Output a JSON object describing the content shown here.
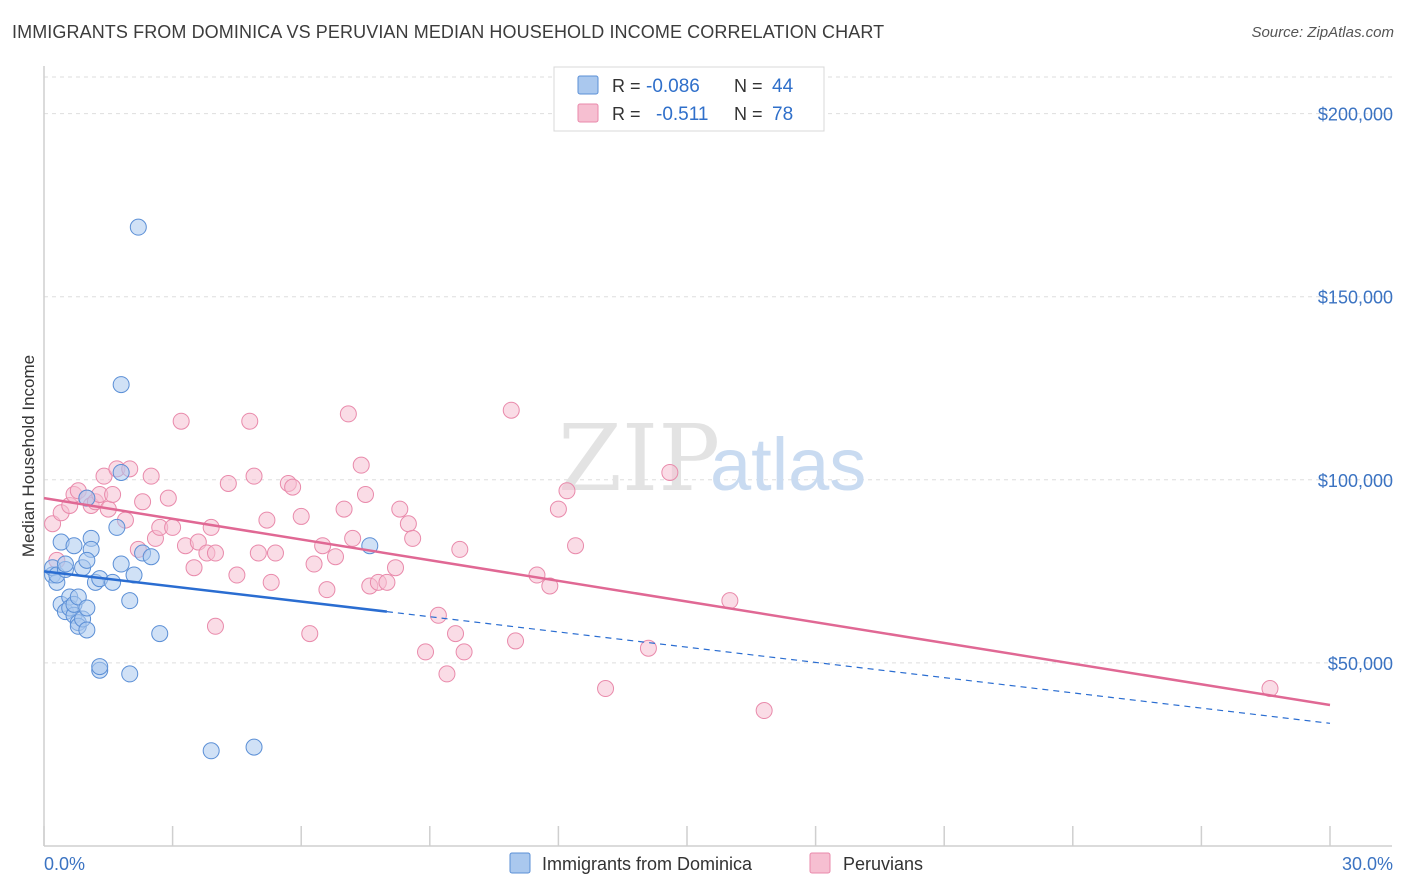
{
  "header": {
    "title": "IMMIGRANTS FROM DOMINICA VS PERUVIAN MEDIAN HOUSEHOLD INCOME CORRELATION CHART",
    "source": "Source: ZipAtlas.com"
  },
  "watermark": {
    "part1": "ZIP",
    "part2": "atlas"
  },
  "colors": {
    "blue_fill": "#aac8ee",
    "blue_stroke": "#5b8fd6",
    "blue_line": "#2a6dd1",
    "pink_fill": "#f6bfd1",
    "pink_stroke": "#e98aab",
    "pink_line": "#e06894",
    "tick_text": "#3b73c2"
  },
  "legend_top": {
    "rows": [
      {
        "r_label": "R =",
        "r_value": "-0.086",
        "n_label": "N =",
        "n_value": "44"
      },
      {
        "r_label": "R =",
        "r_value": "-0.511",
        "n_label": "N =",
        "n_value": "78"
      }
    ]
  },
  "legend_bottom": {
    "items": [
      "Immigrants from Dominica",
      "Peruvians"
    ]
  },
  "chart_data": {
    "type": "scatter",
    "title": "IMMIGRANTS FROM DOMINICA VS PERUVIAN MEDIAN HOUSEHOLD INCOME CORRELATION CHART",
    "xlabel": "",
    "ylabel": "Median Household Income",
    "xlim": [
      0,
      30
    ],
    "ylim": [
      0,
      210000
    ],
    "x_tick_labels": [
      "0.0%",
      "30.0%"
    ],
    "y_ticks": [
      50000,
      100000,
      150000,
      200000
    ],
    "y_tick_labels": [
      "$50,000",
      "$100,000",
      "$150,000",
      "$200,000"
    ],
    "grid": true,
    "legend_position": "top-center",
    "series": [
      {
        "name": "Immigrants from Dominica",
        "r": -0.086,
        "n": 44,
        "trend": {
          "x_start": 0,
          "y_start": 75000,
          "x_end_solid": 8,
          "y_end_solid": 64000,
          "x_end_dashed": 30,
          "y_end_dashed": 33500
        },
        "points": [
          [
            0.2,
            74000
          ],
          [
            0.2,
            76000
          ],
          [
            0.3,
            72000
          ],
          [
            0.3,
            74000
          ],
          [
            0.4,
            83000
          ],
          [
            0.4,
            66000
          ],
          [
            0.5,
            64000
          ],
          [
            0.5,
            75500
          ],
          [
            0.5,
            77000
          ],
          [
            0.6,
            68000
          ],
          [
            0.6,
            65000
          ],
          [
            0.7,
            63000
          ],
          [
            0.7,
            82000
          ],
          [
            0.7,
            66000
          ],
          [
            0.8,
            61000
          ],
          [
            0.8,
            68000
          ],
          [
            0.8,
            60000
          ],
          [
            0.9,
            62000
          ],
          [
            0.9,
            76000
          ],
          [
            1.0,
            59000
          ],
          [
            1.0,
            65000
          ],
          [
            1.1,
            84000
          ],
          [
            1.1,
            81000
          ],
          [
            1.2,
            72000
          ],
          [
            1.3,
            73000
          ],
          [
            1.0,
            95000
          ],
          [
            1.0,
            78000
          ],
          [
            1.3,
            48000
          ],
          [
            1.3,
            49000
          ],
          [
            1.6,
            72000
          ],
          [
            1.7,
            87000
          ],
          [
            1.8,
            102000
          ],
          [
            1.8,
            77000
          ],
          [
            2.1,
            74000
          ],
          [
            2.0,
            67000
          ],
          [
            1.8,
            126000
          ],
          [
            2.0,
            47000
          ],
          [
            2.3,
            80000
          ],
          [
            2.5,
            79000
          ],
          [
            2.2,
            169000
          ],
          [
            2.7,
            58000
          ],
          [
            3.9,
            26000
          ],
          [
            4.9,
            27000
          ],
          [
            7.6,
            82000
          ]
        ]
      },
      {
        "name": "Peruvians",
        "r": -0.511,
        "n": 78,
        "trend": {
          "x_start": 0,
          "y_start": 95000,
          "x_end": 30,
          "y_end": 38500
        },
        "points": [
          [
            0.2,
            88000
          ],
          [
            0.3,
            78000
          ],
          [
            0.4,
            91000
          ],
          [
            0.6,
            93000
          ],
          [
            0.7,
            96000
          ],
          [
            0.8,
            97000
          ],
          [
            1.0,
            95000
          ],
          [
            1.1,
            93000
          ],
          [
            1.2,
            94000
          ],
          [
            1.3,
            96000
          ],
          [
            1.4,
            101000
          ],
          [
            1.5,
            92000
          ],
          [
            1.6,
            96000
          ],
          [
            1.7,
            103000
          ],
          [
            1.9,
            89000
          ],
          [
            2.0,
            103000
          ],
          [
            2.2,
            81000
          ],
          [
            2.3,
            94000
          ],
          [
            2.5,
            101000
          ],
          [
            2.6,
            84000
          ],
          [
            2.7,
            87000
          ],
          [
            2.9,
            95000
          ],
          [
            3.0,
            87000
          ],
          [
            3.2,
            116000
          ],
          [
            3.3,
            82000
          ],
          [
            3.5,
            76000
          ],
          [
            3.6,
            83000
          ],
          [
            3.8,
            80000
          ],
          [
            3.9,
            87000
          ],
          [
            4.0,
            80000
          ],
          [
            4.0,
            60000
          ],
          [
            4.3,
            99000
          ],
          [
            4.5,
            74000
          ],
          [
            4.8,
            116000
          ],
          [
            4.9,
            101000
          ],
          [
            5.0,
            80000
          ],
          [
            5.2,
            89000
          ],
          [
            5.3,
            72000
          ],
          [
            5.4,
            80000
          ],
          [
            5.7,
            99000
          ],
          [
            5.8,
            98000
          ],
          [
            6.0,
            90000
          ],
          [
            6.2,
            58000
          ],
          [
            6.3,
            77000
          ],
          [
            6.5,
            82000
          ],
          [
            6.6,
            70000
          ],
          [
            6.8,
            79000
          ],
          [
            7.0,
            92000
          ],
          [
            7.2,
            84000
          ],
          [
            7.1,
            118000
          ],
          [
            7.4,
            104000
          ],
          [
            7.5,
            96000
          ],
          [
            7.6,
            71000
          ],
          [
            7.8,
            72000
          ],
          [
            8.0,
            72000
          ],
          [
            8.2,
            76000
          ],
          [
            8.3,
            92000
          ],
          [
            8.5,
            88000
          ],
          [
            8.6,
            84000
          ],
          [
            8.9,
            53000
          ],
          [
            9.2,
            63000
          ],
          [
            9.4,
            47000
          ],
          [
            9.6,
            58000
          ],
          [
            9.7,
            81000
          ],
          [
            9.8,
            53000
          ],
          [
            10.9,
            119000
          ],
          [
            11.0,
            56000
          ],
          [
            11.5,
            74000
          ],
          [
            11.8,
            71000
          ],
          [
            12.0,
            92000
          ],
          [
            12.2,
            97000
          ],
          [
            12.4,
            82000
          ],
          [
            13.1,
            43000
          ],
          [
            14.1,
            54000
          ],
          [
            14.6,
            102000
          ],
          [
            16.0,
            67000
          ],
          [
            16.8,
            37000
          ],
          [
            28.6,
            43000
          ]
        ]
      }
    ]
  }
}
